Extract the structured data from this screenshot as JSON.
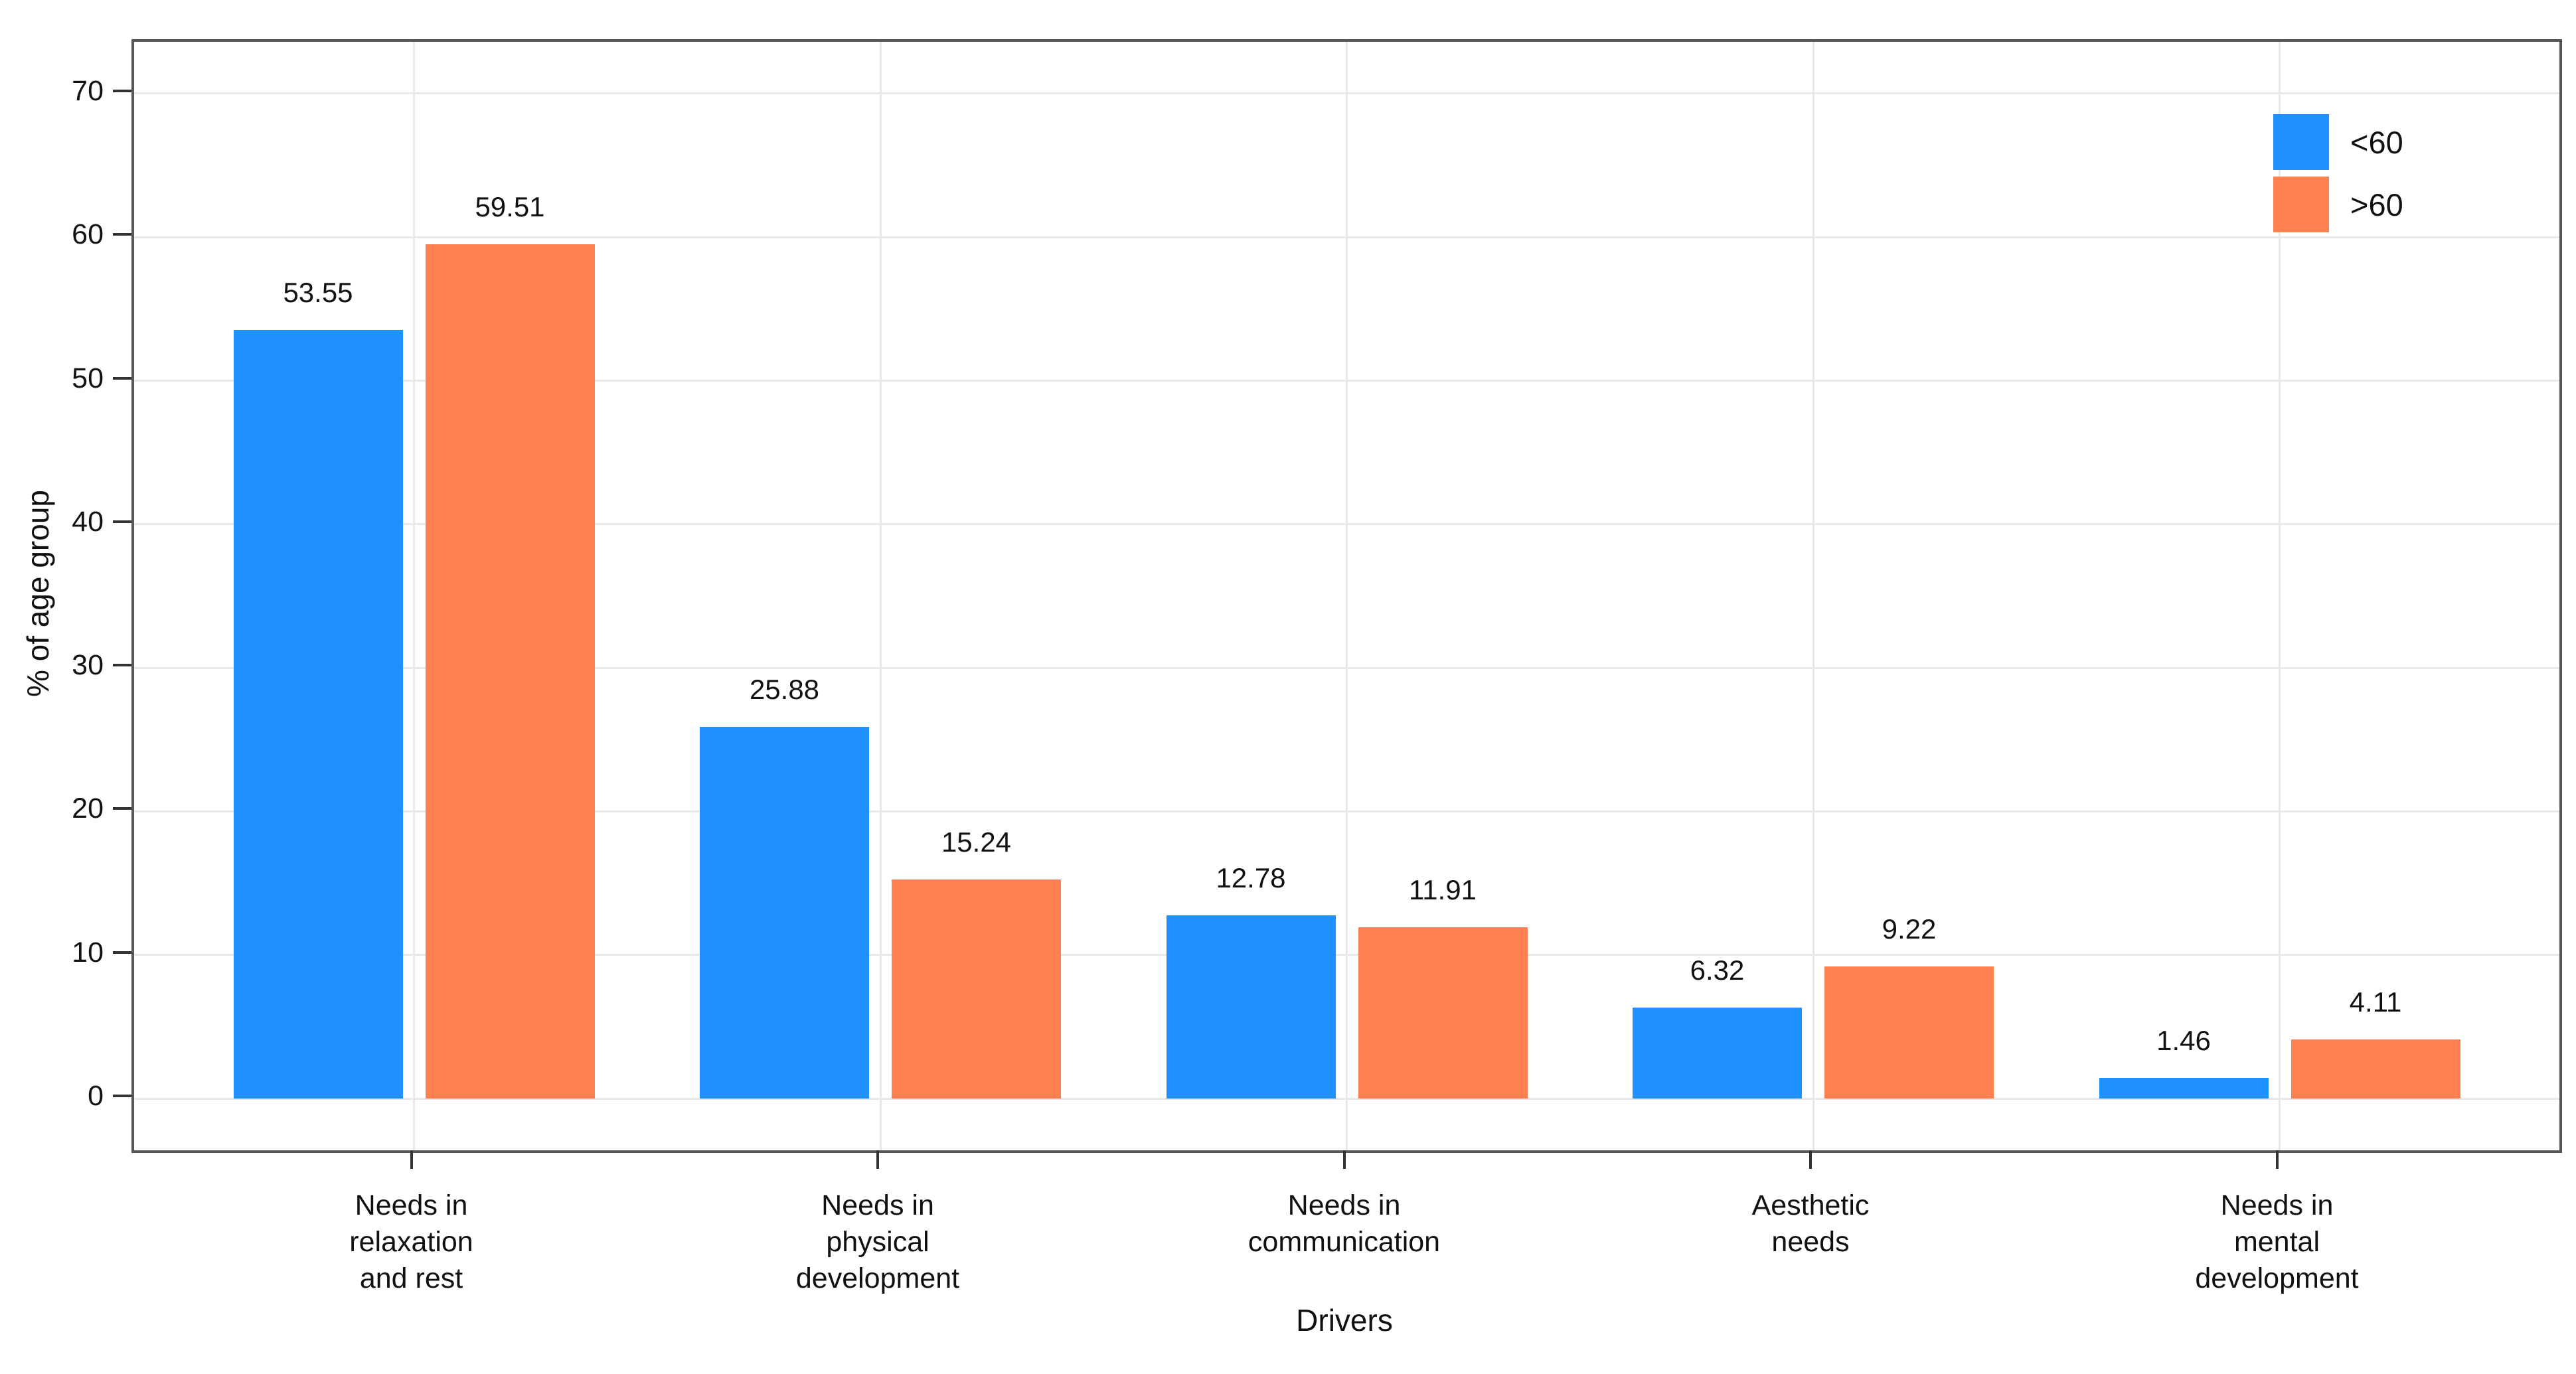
{
  "chart_data": {
    "type": "bar",
    "title": "",
    "xlabel": "Drivers",
    "ylabel": "% of age group",
    "categories": [
      "Needs in relaxation and rest",
      "Needs in physical development",
      "Needs in communication",
      "Aesthetic needs",
      "Needs in mental development"
    ],
    "category_wrap": [
      [
        "Needs in",
        "relaxation",
        "and rest"
      ],
      [
        "Needs in",
        "physical",
        "development"
      ],
      [
        "Needs in",
        "communication"
      ],
      [
        "Aesthetic",
        "needs"
      ],
      [
        "Needs in",
        "mental",
        "development"
      ]
    ],
    "series": [
      {
        "name": "<60",
        "color": "#1E90FF",
        "values": [
          53.55,
          25.88,
          12.78,
          6.32,
          1.46
        ]
      },
      {
        "name": ">60",
        "color": "#FF7F50",
        "values": [
          59.51,
          15.24,
          11.91,
          9.22,
          4.11
        ]
      }
    ],
    "y_ticks": [
      0,
      10,
      20,
      30,
      40,
      50,
      60,
      70
    ],
    "ylim": [
      0,
      70
    ],
    "grid": "major-only",
    "legend_position": "top-right-inside"
  },
  "styles": {
    "bar_blue": "#1E90FF",
    "bar_orange": "#FF7F50",
    "gridline": "#e9e9e9",
    "panel_border": "#58585a",
    "text": "#111111"
  }
}
